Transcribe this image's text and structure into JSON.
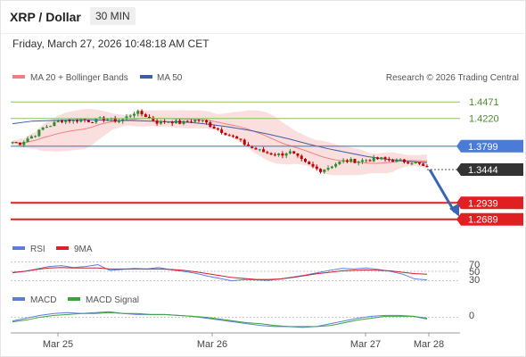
{
  "header": {
    "title": "XRP / Dollar",
    "interval": "30 MIN"
  },
  "timestamp": "Friday, March 27, 2026 10:48:18 AM CET",
  "copyright": "Research © 2026 Trading Central",
  "colors": {
    "ma20": "#f08080",
    "ma50": "#3b5ea8",
    "resistance": "#8cc06c",
    "pivot": "#4a7bd6",
    "support": "#e02020",
    "up": "#2e8b2e",
    "down": "#c00000",
    "rsi": "#5b7fd6",
    "macd": "#5b7fd6",
    "signal": "#3aa33a"
  },
  "chart_data": [
    {
      "type": "candlestick",
      "legend": [
        "MA 20 + Bollinger Bands",
        "MA 50"
      ],
      "x_ticks": [
        "Mar 25",
        "Mar 26",
        "Mar 27",
        "Mar 28"
      ],
      "ylim": [
        1.255,
        1.465
      ],
      "levels": [
        {
          "label": "1.4471",
          "value": 1.4471,
          "kind": "resistance"
        },
        {
          "label": "1.4220",
          "value": 1.422,
          "kind": "resistance"
        },
        {
          "label": "1.3799",
          "value": 1.3799,
          "kind": "pivot"
        },
        {
          "label": "1.3444",
          "value": 1.3444,
          "kind": "last"
        },
        {
          "label": "1.2939",
          "value": 1.2939,
          "kind": "support"
        },
        {
          "label": "1.2689",
          "value": 1.2689,
          "kind": "support"
        }
      ],
      "close_path": [
        1.386,
        1.384,
        1.392,
        1.398,
        1.408,
        1.412,
        1.418,
        1.42,
        1.418,
        1.421,
        1.418,
        1.42,
        1.422,
        1.42,
        1.418,
        1.425,
        1.432,
        1.428,
        1.422,
        1.415,
        1.418,
        1.417,
        1.415,
        1.418,
        1.42,
        1.417,
        1.41,
        1.404,
        1.398,
        1.392,
        1.385,
        1.378,
        1.374,
        1.37,
        1.368,
        1.367,
        1.372,
        1.364,
        1.355,
        1.349,
        1.343,
        1.347,
        1.353,
        1.357,
        1.358,
        1.357,
        1.359,
        1.36,
        1.361,
        1.359,
        1.358,
        1.357,
        1.356,
        1.352,
        1.346
      ],
      "ma50_path": [
        1.414,
        1.418,
        1.419,
        1.42,
        1.42,
        1.419,
        1.419,
        1.418,
        1.417,
        1.416,
        1.413,
        1.409,
        1.404,
        1.398,
        1.391,
        1.383,
        1.376,
        1.37,
        1.364,
        1.36,
        1.357,
        1.355
      ],
      "forecast": {
        "from": 1.3444,
        "to": 1.2689
      }
    },
    {
      "type": "line",
      "legend": [
        "RSI",
        "9MA"
      ],
      "y_ticks": [
        "70",
        "50",
        "30"
      ],
      "ylim": [
        20,
        80
      ],
      "rsi": [
        48,
        50,
        55,
        60,
        62,
        58,
        60,
        64,
        52,
        54,
        56,
        55,
        58,
        53,
        50,
        46,
        40,
        35,
        30,
        33,
        32,
        31,
        34,
        38,
        42,
        47,
        52,
        56,
        55,
        57,
        54,
        50,
        44,
        34,
        32
      ],
      "ma9": [
        47,
        50,
        54,
        57,
        58,
        57,
        57,
        57,
        55,
        55,
        55,
        55,
        55,
        54,
        52,
        49,
        45,
        41,
        37,
        35,
        33,
        33,
        34,
        37,
        41,
        45,
        48,
        51,
        52,
        53,
        52,
        51,
        48,
        45,
        44
      ]
    },
    {
      "type": "line",
      "legend": [
        "MACD",
        "MACD Signal"
      ],
      "y_ticks": [
        "0"
      ],
      "ylim": [
        -0.015,
        0.012
      ],
      "macd": [
        -0.004,
        -0.001,
        0.002,
        0.004,
        0.005,
        0.004,
        0.005,
        0.006,
        0.004,
        0.003,
        0.003,
        0.003,
        0.002,
        0.001,
        -0.001,
        -0.003,
        -0.005,
        -0.007,
        -0.009,
        -0.01,
        -0.01,
        -0.011,
        -0.01,
        -0.007,
        -0.004,
        -0.001,
        0.001,
        0.002,
        0.002,
        0.001,
        -0.002
      ],
      "signal": [
        -0.005,
        -0.003,
        0.0,
        0.002,
        0.003,
        0.004,
        0.004,
        0.005,
        0.004,
        0.004,
        0.003,
        0.003,
        0.002,
        0.001,
        0.0,
        -0.002,
        -0.004,
        -0.006,
        -0.007,
        -0.009,
        -0.01,
        -0.01,
        -0.01,
        -0.009,
        -0.006,
        -0.003,
        -0.001,
        0.001,
        0.001,
        0.001,
        -0.001
      ]
    }
  ]
}
